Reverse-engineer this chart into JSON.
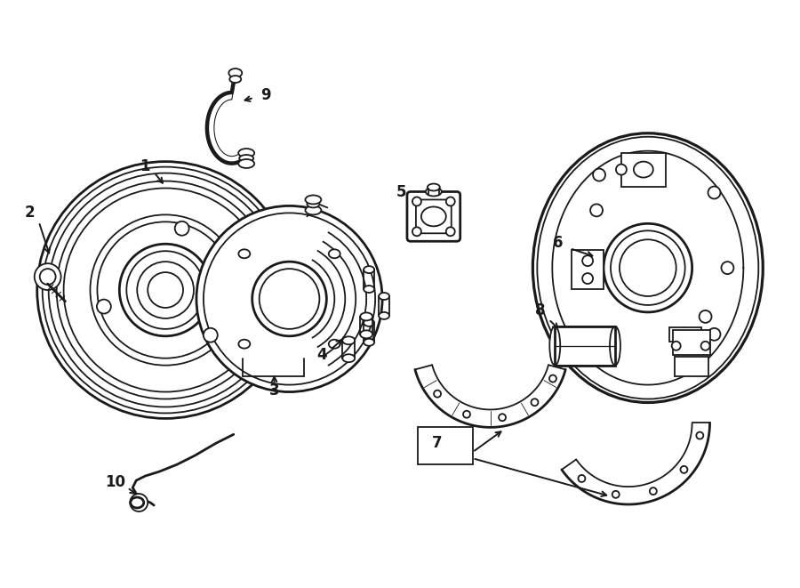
{
  "bg_color": "#ffffff",
  "line_color": "#1a1a1a",
  "lw": 1.3,
  "lw_bold": 2.0,
  "figsize": [
    9.0,
    6.61
  ],
  "dpi": 100,
  "xlim": [
    0,
    9.0
  ],
  "ylim": [
    0,
    6.61
  ]
}
